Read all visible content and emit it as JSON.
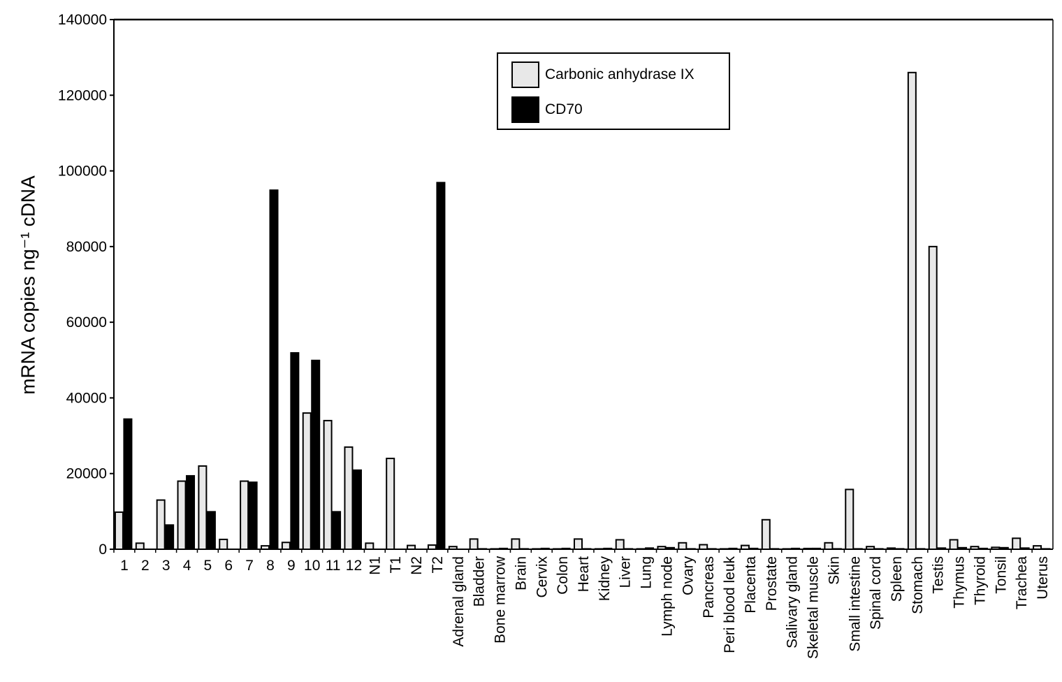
{
  "chart_data": {
    "type": "bar",
    "title": "",
    "xlabel": "",
    "ylabel": "mRNA copies ng⁻¹ cDNA",
    "ylim": [
      0,
      140000
    ],
    "yticks": [
      0,
      20000,
      40000,
      60000,
      80000,
      100000,
      120000,
      140000
    ],
    "grid": false,
    "legend_position": "upper center",
    "categories": [
      "1",
      "2",
      "3",
      "4",
      "5",
      "6",
      "7",
      "8",
      "9",
      "10",
      "11",
      "12",
      "N1",
      "T1",
      "N2",
      "T2",
      "Adrenal gland",
      "Bladder",
      "Bone marrow",
      "Brain",
      "Cervix",
      "Colon",
      "Heart",
      "Kidney",
      "Liver",
      "Lung",
      "Lymph node",
      "Ovary",
      "Pancreas",
      "Peri blood leuk",
      "Placenta",
      "Prostate",
      "Salivary gland",
      "Skeletal muscle",
      "Skin",
      "Small intestine",
      "Spinal cord",
      "Spleen",
      "Stomach",
      "Testis",
      "Thymus",
      "Thyroid",
      "Tonsil",
      "Trachea",
      "Uterus"
    ],
    "series": [
      {
        "name": "Carbonic anhydrase IX",
        "color": "#e8e8e8",
        "values": [
          9800,
          1600,
          13000,
          18000,
          22000,
          2600,
          18000,
          900,
          1800,
          36000,
          34000,
          27000,
          1600,
          24000,
          1000,
          1100,
          700,
          2700,
          100,
          2700,
          100,
          100,
          2700,
          100,
          2500,
          100,
          700,
          1700,
          1200,
          100,
          1000,
          7800,
          100,
          200,
          1700,
          15800,
          700,
          300,
          126000,
          80000,
          2500,
          700,
          500,
          2900,
          900
        ]
      },
      {
        "name": "CD70",
        "color": "#000000",
        "values": [
          34500,
          0,
          6500,
          19500,
          10000,
          0,
          17800,
          95000,
          52000,
          50000,
          10000,
          21000,
          0,
          0,
          0,
          97000,
          0,
          200,
          300,
          200,
          300,
          300,
          200,
          300,
          200,
          400,
          500,
          200,
          200,
          300,
          300,
          200,
          300,
          300,
          200,
          200,
          200,
          200,
          200,
          400,
          500,
          300,
          500,
          400,
          200
        ]
      }
    ]
  },
  "legend": {
    "items": [
      {
        "label": "Carbonic anhydrase IX",
        "color": "#e8e8e8"
      },
      {
        "label": "CD70",
        "color": "#000000"
      }
    ]
  },
  "axis": {
    "ylabel": "mRNA copies ng⁻¹ cDNA"
  }
}
